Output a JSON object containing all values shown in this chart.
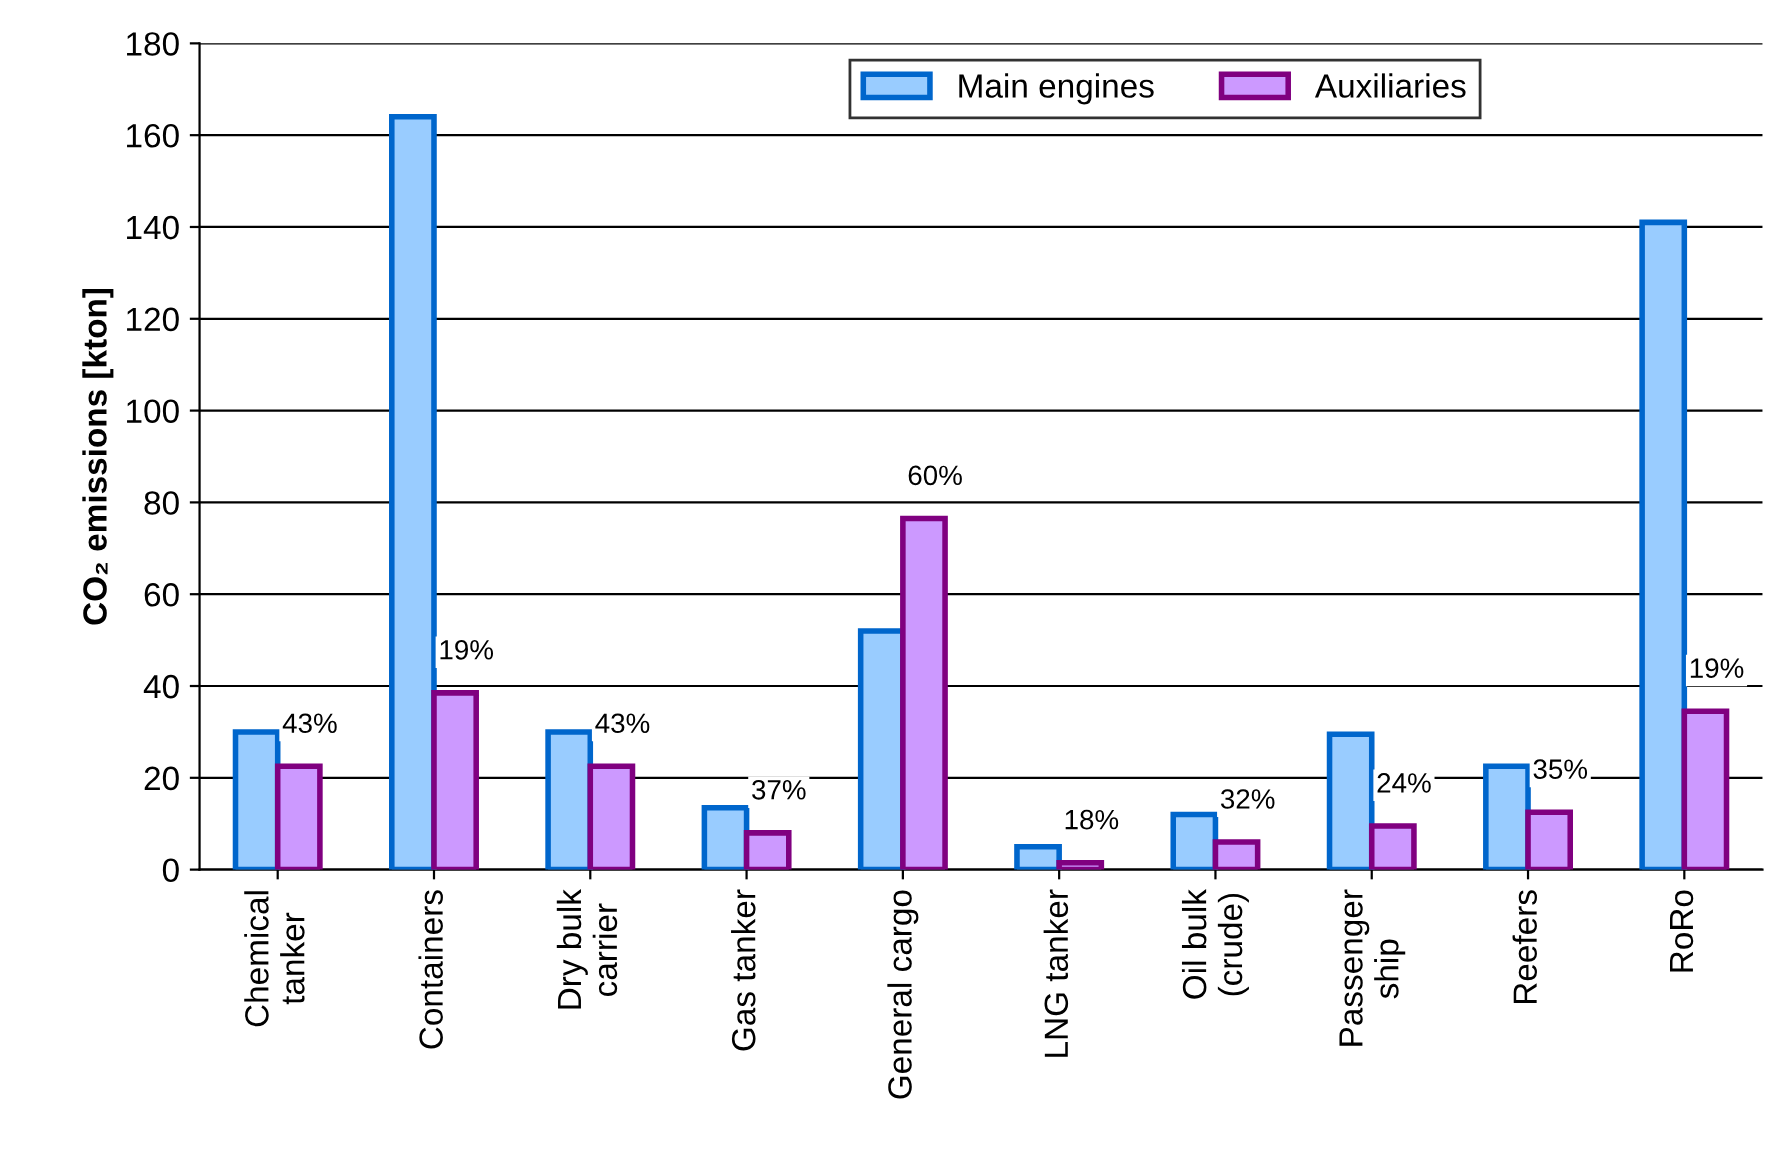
{
  "chart_data": {
    "type": "bar",
    "ylabel": "CO₂ emissions [kton]",
    "categories": [
      "Chemical\ntanker",
      "Containers",
      "Dry bulk\ncarrier",
      "Gas tanker",
      "General cargo",
      "LNG tanker",
      "Oil bulk\n(crude)",
      "Passenger\nship",
      "Reefers",
      "RoRo"
    ],
    "series": [
      {
        "name": "Main engines",
        "color": "#99ccff",
        "values": [
          30,
          164,
          30,
          13.5,
          52,
          5,
          12,
          29.5,
          22.5,
          141
        ]
      },
      {
        "name": "Auxiliaries",
        "color": "#cc99ff",
        "values": [
          22.5,
          38.5,
          22.5,
          8,
          76.5,
          1.5,
          6,
          9.5,
          12.5,
          34.5
        ]
      }
    ],
    "annotations": [
      {
        "text": "43%",
        "x": "Chemical\ntanker",
        "y": 22.5
      },
      {
        "text": "19%",
        "x": "Containers",
        "y": 38.5
      },
      {
        "text": "43%",
        "x": "Dry bulk\ncarrier",
        "y": 22.5
      },
      {
        "text": "37%",
        "x": "Gas tanker",
        "y": 8
      },
      {
        "text": "60%",
        "x": "General cargo",
        "y": 76.5
      },
      {
        "text": "18%",
        "x": "LNG tanker",
        "y": 1.5
      },
      {
        "text": "32%",
        "x": "Oil bulk\n(crude)",
        "y": 6
      },
      {
        "text": "24%",
        "x": "Passenger\nship",
        "y": 9.5
      },
      {
        "text": "35%",
        "x": "Reefers",
        "y": 12.5
      },
      {
        "text": "19%",
        "x": "RoRo",
        "y": 34.5
      }
    ],
    "ylim": [
      0,
      180
    ],
    "yticks": [
      0,
      20,
      40,
      60,
      80,
      100,
      120,
      140,
      160,
      180
    ],
    "grid": "y",
    "legend": "top right"
  }
}
